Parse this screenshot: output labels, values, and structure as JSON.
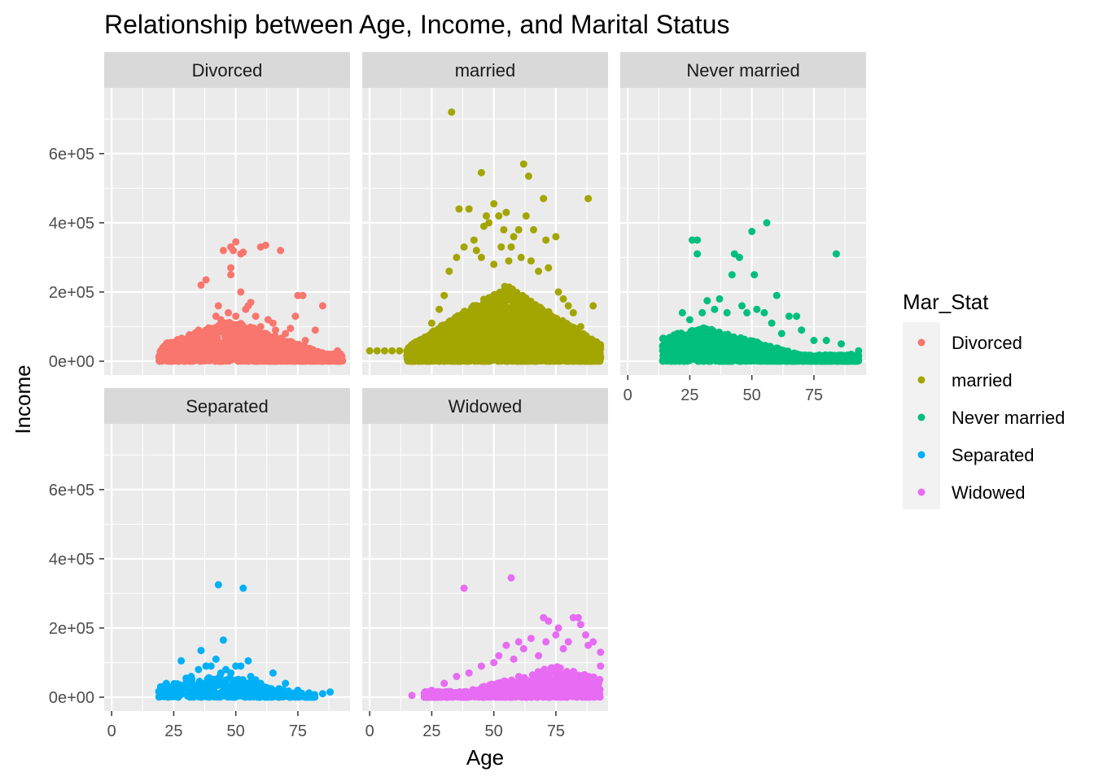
{
  "chart_data": {
    "type": "scatter",
    "title": "Relationship between Age, Income, and Marital Status",
    "xlabel": "Age",
    "ylabel": "Income",
    "xlim": [
      -3,
      96
    ],
    "ylim": [
      -40000,
      790000
    ],
    "x_ticks": [
      0,
      25,
      50,
      75
    ],
    "x_tick_labels": [
      "0",
      "25",
      "50",
      "75"
    ],
    "y_ticks": [
      0,
      200000,
      400000,
      600000
    ],
    "y_tick_labels": [
      "0e+00",
      "2e+05",
      "4e+05",
      "6e+05"
    ],
    "grid": true,
    "facet_by": "Mar_Stat",
    "legend": {
      "title": "Mar_Stat",
      "position": "right",
      "entries": [
        {
          "name": "Divorced",
          "color": "#F8766D"
        },
        {
          "name": "married",
          "color": "#A3A500"
        },
        {
          "name": "Never married",
          "color": "#00BF7D"
        },
        {
          "name": "Separated",
          "color": "#00B0F6"
        },
        {
          "name": "Widowed",
          "color": "#E76BF3"
        }
      ]
    },
    "facets": [
      {
        "name": "Divorced",
        "color": "#F8766D",
        "bulk": {
          "x_range": [
            19,
            93
          ],
          "peak_x": 48,
          "y_max": 120000,
          "count": 1400
        },
        "points": [
          [
            20,
            5000
          ],
          [
            22,
            15000
          ],
          [
            25,
            30000
          ],
          [
            28,
            50000
          ],
          [
            30,
            60000
          ],
          [
            32,
            75000
          ],
          [
            35,
            90000
          ],
          [
            36,
            220000
          ],
          [
            38,
            235000
          ],
          [
            40,
            90000
          ],
          [
            42,
            130000
          ],
          [
            43,
            160000
          ],
          [
            44,
            120000
          ],
          [
            45,
            320000
          ],
          [
            46,
            110000
          ],
          [
            47,
            140000
          ],
          [
            48,
            330000
          ],
          [
            48,
            270000
          ],
          [
            48,
            250000
          ],
          [
            49,
            320000
          ],
          [
            50,
            345000
          ],
          [
            50,
            130000
          ],
          [
            52,
            310000
          ],
          [
            52,
            200000
          ],
          [
            53,
            315000
          ],
          [
            54,
            150000
          ],
          [
            55,
            160000
          ],
          [
            56,
            170000
          ],
          [
            58,
            130000
          ],
          [
            60,
            330000
          ],
          [
            60,
            100000
          ],
          [
            62,
            335000
          ],
          [
            63,
            120000
          ],
          [
            65,
            110000
          ],
          [
            66,
            90000
          ],
          [
            68,
            320000
          ],
          [
            70,
            80000
          ],
          [
            72,
            95000
          ],
          [
            74,
            130000
          ],
          [
            75,
            190000
          ],
          [
            77,
            190000
          ],
          [
            78,
            60000
          ],
          [
            82,
            90000
          ],
          [
            85,
            160000
          ],
          [
            88,
            20000
          ],
          [
            91,
            30000
          ],
          [
            92,
            10000
          ]
        ]
      },
      {
        "name": "married",
        "color": "#A3A500",
        "bulk": {
          "x_range": [
            15,
            93
          ],
          "peak_x": 55,
          "y_max": 220000,
          "count": 2800
        },
        "points": [
          [
            0,
            30000
          ],
          [
            3,
            30000
          ],
          [
            6,
            30000
          ],
          [
            9,
            30000
          ],
          [
            12,
            30000
          ],
          [
            15,
            30000
          ],
          [
            18,
            40000
          ],
          [
            20,
            60000
          ],
          [
            25,
            110000
          ],
          [
            28,
            150000
          ],
          [
            30,
            190000
          ],
          [
            32,
            260000
          ],
          [
            33,
            720000
          ],
          [
            35,
            300000
          ],
          [
            36,
            440000
          ],
          [
            38,
            330000
          ],
          [
            40,
            440000
          ],
          [
            42,
            350000
          ],
          [
            43,
            320000
          ],
          [
            45,
            545000
          ],
          [
            45,
            300000
          ],
          [
            46,
            390000
          ],
          [
            47,
            420000
          ],
          [
            48,
            400000
          ],
          [
            50,
            455000
          ],
          [
            50,
            280000
          ],
          [
            52,
            420000
          ],
          [
            53,
            330000
          ],
          [
            54,
            380000
          ],
          [
            55,
            430000
          ],
          [
            56,
            290000
          ],
          [
            57,
            330000
          ],
          [
            58,
            360000
          ],
          [
            60,
            380000
          ],
          [
            61,
            300000
          ],
          [
            62,
            570000
          ],
          [
            63,
            420000
          ],
          [
            64,
            535000
          ],
          [
            65,
            290000
          ],
          [
            66,
            380000
          ],
          [
            68,
            260000
          ],
          [
            70,
            470000
          ],
          [
            71,
            350000
          ],
          [
            72,
            270000
          ],
          [
            75,
            360000
          ],
          [
            76,
            200000
          ],
          [
            78,
            180000
          ],
          [
            80,
            160000
          ],
          [
            82,
            140000
          ],
          [
            85,
            100000
          ],
          [
            88,
            470000
          ],
          [
            90,
            160000
          ],
          [
            92,
            50000
          ],
          [
            93,
            10000
          ]
        ]
      },
      {
        "name": "Never married",
        "color": "#00BF7D",
        "bulk": {
          "x_range": [
            14,
            93
          ],
          "peak_x": 30,
          "y_max": 100000,
          "count": 1500
        },
        "points": [
          [
            18,
            60000
          ],
          [
            20,
            80000
          ],
          [
            22,
            140000
          ],
          [
            25,
            120000
          ],
          [
            26,
            350000
          ],
          [
            28,
            310000
          ],
          [
            28,
            350000
          ],
          [
            30,
            140000
          ],
          [
            32,
            175000
          ],
          [
            35,
            150000
          ],
          [
            37,
            180000
          ],
          [
            40,
            140000
          ],
          [
            42,
            250000
          ],
          [
            43,
            310000
          ],
          [
            45,
            300000
          ],
          [
            46,
            160000
          ],
          [
            48,
            140000
          ],
          [
            50,
            375000
          ],
          [
            51,
            250000
          ],
          [
            52,
            150000
          ],
          [
            55,
            140000
          ],
          [
            56,
            400000
          ],
          [
            58,
            110000
          ],
          [
            60,
            190000
          ],
          [
            62,
            80000
          ],
          [
            65,
            130000
          ],
          [
            68,
            130000
          ],
          [
            70,
            90000
          ],
          [
            75,
            60000
          ],
          [
            80,
            60000
          ],
          [
            84,
            310000
          ],
          [
            86,
            50000
          ],
          [
            90,
            20000
          ],
          [
            93,
            30000
          ]
        ]
      },
      {
        "name": "Separated",
        "color": "#00B0F6",
        "bulk": {
          "x_range": [
            19,
            82
          ],
          "peak_x": 42,
          "y_max": 70000,
          "count": 350
        },
        "points": [
          [
            20,
            10000
          ],
          [
            22,
            40000
          ],
          [
            25,
            30000
          ],
          [
            28,
            105000
          ],
          [
            30,
            55000
          ],
          [
            32,
            60000
          ],
          [
            35,
            80000
          ],
          [
            36,
            135000
          ],
          [
            38,
            90000
          ],
          [
            40,
            90000
          ],
          [
            42,
            110000
          ],
          [
            43,
            325000
          ],
          [
            44,
            70000
          ],
          [
            45,
            165000
          ],
          [
            46,
            80000
          ],
          [
            48,
            70000
          ],
          [
            50,
            90000
          ],
          [
            52,
            90000
          ],
          [
            53,
            315000
          ],
          [
            55,
            105000
          ],
          [
            56,
            60000
          ],
          [
            58,
            50000
          ],
          [
            60,
            40000
          ],
          [
            65,
            70000
          ],
          [
            70,
            40000
          ],
          [
            75,
            20000
          ],
          [
            80,
            5000
          ],
          [
            85,
            10000
          ],
          [
            88,
            15000
          ]
        ]
      },
      {
        "name": "Widowed",
        "color": "#E76BF3",
        "bulk": {
          "x_range": [
            22,
            93
          ],
          "peak_x": 75,
          "y_max": 90000,
          "count": 800
        },
        "points": [
          [
            17,
            5000
          ],
          [
            25,
            20000
          ],
          [
            30,
            40000
          ],
          [
            35,
            60000
          ],
          [
            38,
            315000
          ],
          [
            40,
            70000
          ],
          [
            45,
            90000
          ],
          [
            50,
            100000
          ],
          [
            52,
            120000
          ],
          [
            55,
            150000
          ],
          [
            57,
            345000
          ],
          [
            58,
            110000
          ],
          [
            60,
            160000
          ],
          [
            62,
            140000
          ],
          [
            65,
            170000
          ],
          [
            68,
            120000
          ],
          [
            70,
            230000
          ],
          [
            71,
            160000
          ],
          [
            72,
            220000
          ],
          [
            75,
            180000
          ],
          [
            76,
            200000
          ],
          [
            78,
            140000
          ],
          [
            80,
            160000
          ],
          [
            82,
            230000
          ],
          [
            84,
            230000
          ],
          [
            85,
            210000
          ],
          [
            87,
            180000
          ],
          [
            88,
            150000
          ],
          [
            90,
            160000
          ],
          [
            93,
            130000
          ],
          [
            93,
            90000
          ]
        ]
      }
    ]
  }
}
